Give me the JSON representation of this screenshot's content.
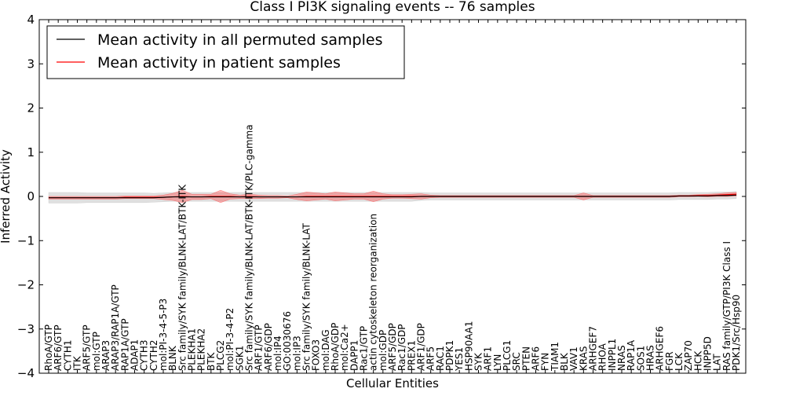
{
  "chart_data": {
    "type": "line",
    "title": "Class I PI3K signaling events -- 76 samples",
    "xlabel": "Cellular Entities",
    "ylabel": "Inferred Activity",
    "ylim": [
      -4,
      4
    ],
    "yticks": [
      -4,
      -3,
      -2,
      -1,
      0,
      1,
      2,
      3,
      4
    ],
    "ytick_labels": [
      "−4",
      "−3",
      "−2",
      "−1",
      "0",
      "1",
      "2",
      "3",
      "4"
    ],
    "legend_position": "top-left",
    "categories": [
      "RhoA/GTP",
      "ARF6/GTP",
      "CYTH1",
      "ITK",
      "ARF5/GTP",
      "mol:GTP",
      "ARAP3",
      "ARAP3/RAP1A/GTP",
      "RAP1A/GTP",
      "ADAP1",
      "CYTH3",
      "CYTH2",
      "mol:PI-3-4-5-P3",
      "BLNK",
      "Src family/SYK family/BLNK-LAT/BTK-ITK",
      "PLEKHA1",
      "PLEKHA2",
      "BTK",
      "PLCG2",
      "mol:PI-3-4-P2",
      "SGK1",
      "Src family/SYK family/BLNK-LAT/BTK-ITK/PLC-gamma",
      "ARF1/GTP",
      "ARF6/GDP",
      "mol:IP4",
      "GO:0030676",
      "mol:IP3",
      "Src family/SYK family/BLNK-LAT",
      "FOXO3",
      "mol:DAG",
      "RhoA/GDP",
      "mol:Ca2+",
      "DAPP1",
      "Rac1/GTP",
      "actin cytoskeleton reorganization",
      "mol:GDP",
      "ARF5/GDP",
      "Rac1/GDP",
      "PREX1",
      "ARF1/GDP",
      "ARF5",
      "RAC1",
      "PDPK1",
      "YES1",
      "HSP90AA1",
      "SYK",
      "ARF1",
      "LYN",
      "PLCG1",
      "SRC",
      "PTEN",
      "ARF6",
      "FYN",
      "TIAM1",
      "BLK",
      "VAV1",
      "KRAS",
      "ARHGEF7",
      "RHOA",
      "INPPL1",
      "NRAS",
      "RAP1A",
      "SOS1",
      "HRAS",
      "ARHGEF6",
      "FGR",
      "LCK",
      "ZAP70",
      "HCK",
      "INPP5D",
      "LAT",
      "RAS family/GTP/PI3K Class I",
      "PDK1/Src/Hsp90"
    ],
    "series": [
      {
        "name": "Mean activity in all permuted samples",
        "color": "#000000",
        "values": [
          -0.03,
          -0.03,
          -0.03,
          -0.03,
          -0.03,
          -0.03,
          -0.03,
          -0.03,
          -0.03,
          -0.03,
          -0.03,
          -0.03,
          -0.02,
          -0.01,
          -0.01,
          -0.01,
          -0.01,
          -0.01,
          -0.01,
          -0.01,
          -0.01,
          -0.01,
          -0.01,
          -0.01,
          -0.01,
          -0.01,
          -0.01,
          -0.01,
          -0.01,
          -0.01,
          -0.01,
          -0.01,
          -0.01,
          -0.01,
          -0.01,
          -0.01,
          -0.01,
          -0.01,
          -0.01,
          0.0,
          0.0,
          0.0,
          0.0,
          0.0,
          0.0,
          0.0,
          0.0,
          0.0,
          0.0,
          0.0,
          0.0,
          0.0,
          0.0,
          0.0,
          0.0,
          0.0,
          0.0,
          0.0,
          0.0,
          0.0,
          0.0,
          0.0,
          0.0,
          0.0,
          0.0,
          0.0,
          0.01,
          0.01,
          0.01,
          0.01,
          0.02,
          0.02,
          0.03
        ],
        "band": [
          0.12,
          0.12,
          0.12,
          0.12,
          0.11,
          0.11,
          0.11,
          0.11,
          0.11,
          0.11,
          0.11,
          0.1,
          0.1,
          0.1,
          0.1,
          0.1,
          0.1,
          0.1,
          0.1,
          0.1,
          0.1,
          0.1,
          0.1,
          0.1,
          0.1,
          0.1,
          0.1,
          0.1,
          0.1,
          0.1,
          0.1,
          0.1,
          0.1,
          0.1,
          0.1,
          0.1,
          0.1,
          0.1,
          0.1,
          0.09,
          0.08,
          0.08,
          0.08,
          0.08,
          0.08,
          0.08,
          0.08,
          0.08,
          0.08,
          0.08,
          0.08,
          0.08,
          0.08,
          0.08,
          0.08,
          0.08,
          0.08,
          0.08,
          0.08,
          0.08,
          0.08,
          0.08,
          0.08,
          0.08,
          0.08,
          0.08,
          0.08,
          0.08,
          0.08,
          0.08,
          0.08,
          0.08,
          0.08
        ]
      },
      {
        "name": "Mean activity in patient samples",
        "color": "#ff0000",
        "values": [
          -0.03,
          -0.03,
          -0.03,
          -0.03,
          -0.03,
          -0.03,
          -0.03,
          -0.03,
          -0.02,
          -0.02,
          -0.02,
          -0.02,
          -0.02,
          -0.01,
          0.0,
          -0.01,
          -0.01,
          0.0,
          0.0,
          0.0,
          -0.01,
          0.0,
          -0.01,
          -0.01,
          -0.01,
          -0.01,
          -0.01,
          0.0,
          0.0,
          0.0,
          0.0,
          0.0,
          0.0,
          0.0,
          0.0,
          0.0,
          0.0,
          0.0,
          0.0,
          0.0,
          0.0,
          0.0,
          0.0,
          0.0,
          0.0,
          0.0,
          0.0,
          0.0,
          0.0,
          0.0,
          0.0,
          0.0,
          0.0,
          0.0,
          0.0,
          0.0,
          0.0,
          0.0,
          0.0,
          0.0,
          0.0,
          0.0,
          0.0,
          0.0,
          0.0,
          0.0,
          0.01,
          0.01,
          0.02,
          0.02,
          0.03,
          0.04,
          0.05
        ],
        "band": [
          0.03,
          0.03,
          0.03,
          0.03,
          0.03,
          0.03,
          0.03,
          0.03,
          0.03,
          0.03,
          0.03,
          0.03,
          0.05,
          0.08,
          0.14,
          0.06,
          0.06,
          0.05,
          0.14,
          0.06,
          0.04,
          0.05,
          0.04,
          0.03,
          0.03,
          0.02,
          0.06,
          0.1,
          0.08,
          0.06,
          0.1,
          0.08,
          0.06,
          0.06,
          0.12,
          0.06,
          0.04,
          0.04,
          0.05,
          0.06,
          0.03,
          0.02,
          0.02,
          0.02,
          0.02,
          0.02,
          0.02,
          0.02,
          0.02,
          0.02,
          0.02,
          0.02,
          0.02,
          0.02,
          0.02,
          0.02,
          0.08,
          0.02,
          0.02,
          0.02,
          0.02,
          0.02,
          0.02,
          0.02,
          0.02,
          0.02,
          0.02,
          0.02,
          0.02,
          0.03,
          0.03,
          0.04,
          0.04
        ]
      }
    ]
  }
}
